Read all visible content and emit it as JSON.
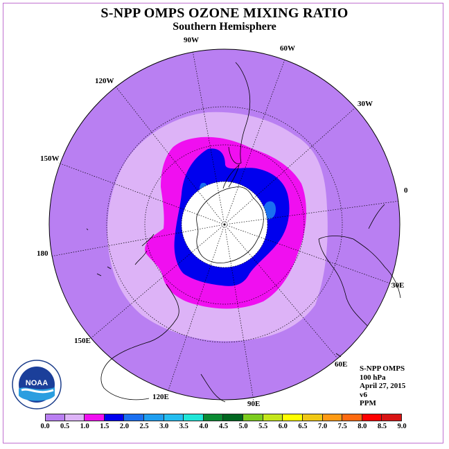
{
  "title": "S-NPP OMPS OZONE MIXING RATIO",
  "subtitle": "Southern Hemisphere",
  "longitude_labels": [
    "90W",
    "60W",
    "30W",
    "0",
    "30E",
    "60E",
    "90E",
    "120E",
    "150E",
    "180",
    "150W",
    "120W"
  ],
  "info": {
    "line1": "S-NPP OMPS",
    "line2": "100 hPa",
    "line3": "April 27, 2015",
    "line4": "v6",
    "line5": "PPM"
  },
  "colorbar": {
    "ticks": [
      "0.0",
      "0.5",
      "1.0",
      "1.5",
      "2.0",
      "2.5",
      "3.0",
      "3.5",
      "4.0",
      "4.5",
      "5.0",
      "5.5",
      "6.0",
      "6.5",
      "7.0",
      "7.5",
      "8.0",
      "8.5",
      "9.0"
    ],
    "colors": [
      "#b97ff2",
      "#ddb3f7",
      "#f00ff0",
      "#0000ee",
      "#1a6ff0",
      "#1e9ef0",
      "#24bdf0",
      "#20e6d8",
      "#0a8a32",
      "#00661f",
      "#7ccc1e",
      "#c4e61a",
      "#ffff00",
      "#f0c814",
      "#ff9a14",
      "#ff6a10",
      "#ff0000",
      "#d81414",
      "#7a4a30"
    ]
  },
  "map": {
    "background_color": "#b97ff2",
    "no_data_color": "#ffffff",
    "levels_shown": [
      "0.0-0.5",
      "0.5-1.0",
      "1.0-1.5",
      "1.5-2.0",
      "2.0-2.5"
    ]
  },
  "logo_text": "NOAA"
}
